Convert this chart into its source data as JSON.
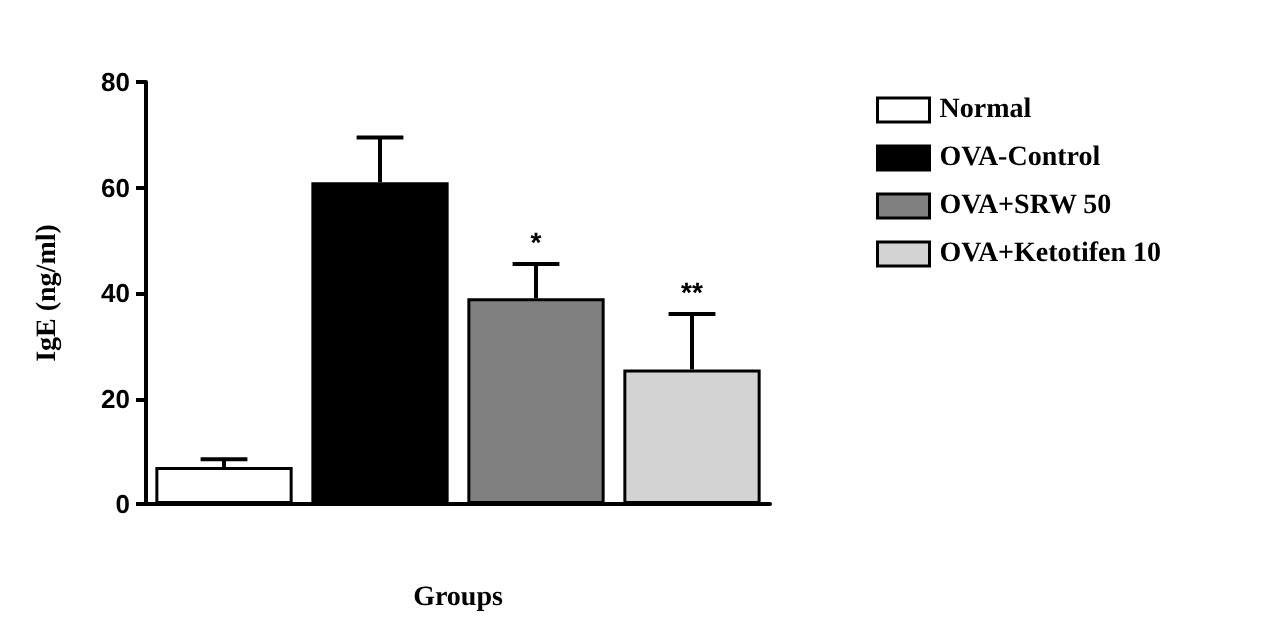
{
  "chart_data": {
    "type": "bar",
    "xlabel": "Groups",
    "ylabel": "IgE (ng/ml)",
    "categories": [
      null
    ],
    "series": [
      {
        "name": "Normal",
        "color": "#ffffff",
        "values": [
          7
        ],
        "errors": [
          [
            7,
            8.5
          ]
        ]
      },
      {
        "name": "OVA-Control",
        "color": "#000000",
        "values": [
          61
        ],
        "errors": [
          [
            61,
            69.5
          ]
        ]
      },
      {
        "name": "OVA+SRW 50",
        "color": "#808080",
        "values": [
          39
        ],
        "errors": [
          [
            39,
            45.5
          ]
        ],
        "value_labels": [
          "*"
        ]
      },
      {
        "name": "OVA+Ketotifen 10",
        "color": "#d3d3d3",
        "values": [
          25.5
        ],
        "errors": [
          [
            25.5,
            36
          ]
        ],
        "value_labels": [
          "**"
        ]
      }
    ],
    "ylim": [
      0,
      80
    ],
    "yticks": [
      0,
      20,
      40,
      60,
      80
    ],
    "grid": false,
    "legend": "top right"
  }
}
